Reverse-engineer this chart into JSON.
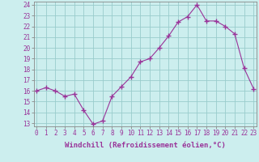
{
  "x": [
    0,
    1,
    2,
    3,
    4,
    5,
    6,
    7,
    8,
    9,
    10,
    11,
    12,
    13,
    14,
    15,
    16,
    17,
    18,
    19,
    20,
    21,
    22,
    23
  ],
  "y": [
    16.0,
    16.3,
    16.0,
    15.5,
    15.7,
    14.2,
    12.9,
    13.2,
    15.5,
    16.4,
    17.3,
    18.7,
    19.0,
    20.0,
    21.1,
    22.4,
    22.9,
    24.0,
    22.5,
    22.5,
    22.0,
    21.3,
    18.1,
    16.2
  ],
  "line_color": "#993399",
  "marker": "+",
  "marker_size": 4,
  "bg_color": "#cceeee",
  "grid_color": "#99cccc",
  "xlabel": "Windchill (Refroidissement éolien,°C)",
  "ylabel": "",
  "ylim_min": 13,
  "ylim_max": 24,
  "xlim_min": 0,
  "xlim_max": 23,
  "yticks": [
    13,
    14,
    15,
    16,
    17,
    18,
    19,
    20,
    21,
    22,
    23,
    24
  ],
  "xticks": [
    0,
    1,
    2,
    3,
    4,
    5,
    6,
    7,
    8,
    9,
    10,
    11,
    12,
    13,
    14,
    15,
    16,
    17,
    18,
    19,
    20,
    21,
    22,
    23
  ],
  "tick_label_size": 5.5,
  "xlabel_size": 6.5,
  "spine_color": "#888888",
  "tick_color": "#993399",
  "label_color": "#993399"
}
